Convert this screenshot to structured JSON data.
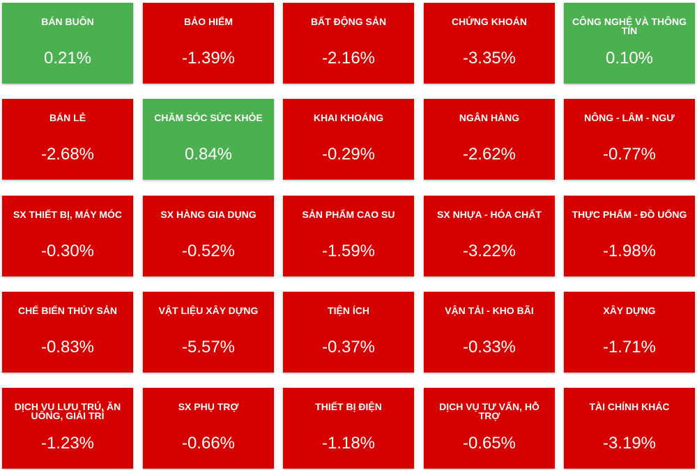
{
  "tiles": [
    {
      "name": "BÁN BUÔN",
      "change": "0.21%",
      "color": "#4caf50"
    },
    {
      "name": "BẢO HIỂM",
      "change": "-1.39%",
      "color": "#d50000"
    },
    {
      "name": "BẤT ĐỘNG SẢN",
      "change": "-2.16%",
      "color": "#d50000"
    },
    {
      "name": "CHỨNG KHOÁN",
      "change": "-3.35%",
      "color": "#d50000"
    },
    {
      "name": "CÔNG NGHỆ VÀ THÔNG TIN",
      "change": "0.10%",
      "color": "#4caf50"
    },
    {
      "name": "BÁN LẺ",
      "change": "-2.68%",
      "color": "#d50000"
    },
    {
      "name": "CHĂM SÓC SỨC KHỎE",
      "change": "0.84%",
      "color": "#4caf50"
    },
    {
      "name": "KHAI KHOÁNG",
      "change": "-0.29%",
      "color": "#d50000"
    },
    {
      "name": "NGÂN HÀNG",
      "change": "-2.62%",
      "color": "#d50000"
    },
    {
      "name": "NÔNG - LÂM - NGƯ",
      "change": "-0.77%",
      "color": "#d50000"
    },
    {
      "name": "SX THIẾT BỊ, MÁY MÓC",
      "change": "-0.30%",
      "color": "#d50000"
    },
    {
      "name": "SX HÀNG GIA DỤNG",
      "change": "-0.52%",
      "color": "#d50000"
    },
    {
      "name": "SẢN PHẨM CAO SU",
      "change": "-1.59%",
      "color": "#d50000"
    },
    {
      "name": "SX NHỰA - HÓA CHẤT",
      "change": "-3.22%",
      "color": "#d50000"
    },
    {
      "name": "THỰC PHẨM - ĐỒ UỐNG",
      "change": "-1.98%",
      "color": "#d50000"
    },
    {
      "name": "CHẾ BIẾN THỦY SẢN",
      "change": "-0.83%",
      "color": "#d50000"
    },
    {
      "name": "VẬT LIỆU XÂY DỰNG",
      "change": "-5.57%",
      "color": "#d50000"
    },
    {
      "name": "TIỆN ÍCH",
      "change": "-0.37%",
      "color": "#d50000"
    },
    {
      "name": "VẬN TẢI - KHO BÃI",
      "change": "-0.33%",
      "color": "#d50000"
    },
    {
      "name": "XÂY DỰNG",
      "change": "-1.71%",
      "color": "#d50000"
    },
    {
      "name": "DỊCH VỤ LƯU TRÚ, ĂN UỐNG, GIẢI TRÍ",
      "change": "-1.23%",
      "color": "#d50000"
    },
    {
      "name": "SX PHỤ TRỢ",
      "change": "-0.66%",
      "color": "#d50000"
    },
    {
      "name": "THIẾT BỊ ĐIỆN",
      "change": "-1.18%",
      "color": "#d50000"
    },
    {
      "name": "DỊCH VỤ TƯ VẤN, HỖ TRỢ",
      "change": "-0.65%",
      "color": "#d50000"
    },
    {
      "name": "TÀI CHÍNH KHÁC",
      "change": "-3.19%",
      "color": "#d50000"
    }
  ]
}
